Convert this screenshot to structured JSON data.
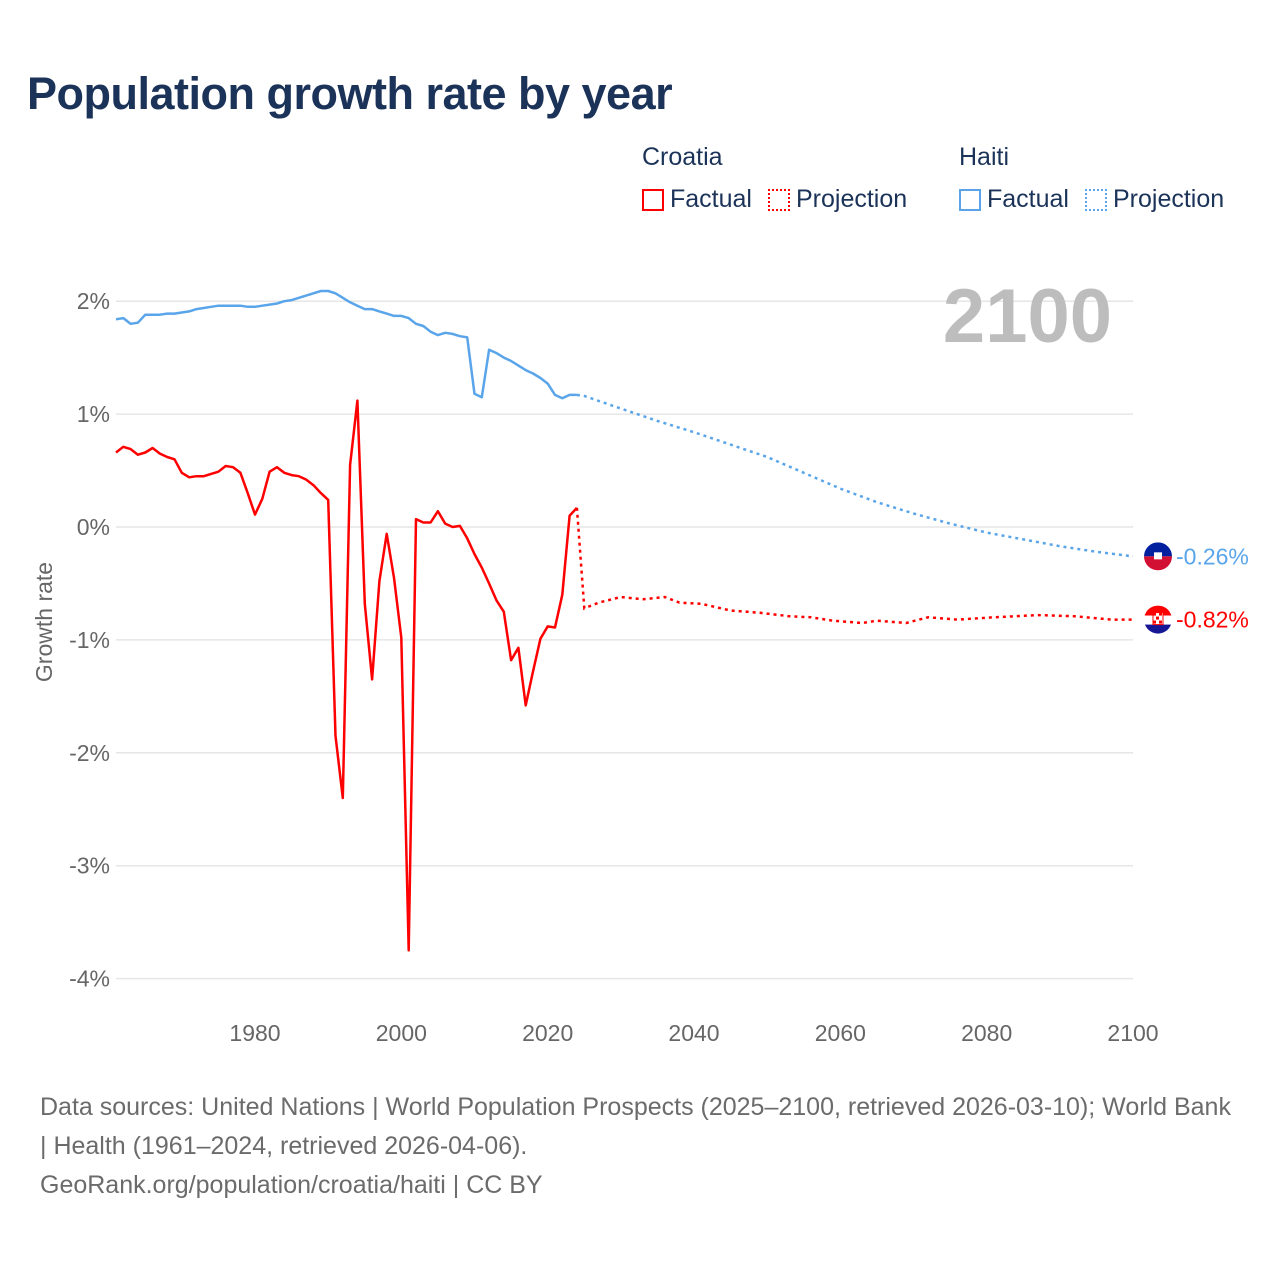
{
  "title": "Population growth rate by year",
  "legend": {
    "groups": [
      {
        "name": "Croatia",
        "factual": "Factual",
        "projection": "Projection",
        "color": "#ff0000"
      },
      {
        "name": "Haiti",
        "factual": "Factual",
        "projection": "Projection",
        "color": "#5aa5ea"
      }
    ]
  },
  "year_label": "2100",
  "footer": {
    "sources": "Data sources: United Nations | World Population Prospects (2025–2100, retrieved 2026-03-10); World Bank | Health (1961–2024, retrieved 2026-04-06).",
    "credit": "GeoRank.org/population/croatia/haiti | CC BY"
  },
  "chart_data": {
    "type": "line",
    "title": "Population growth rate by year",
    "xlabel": "",
    "ylabel": "Growth rate",
    "xlim": [
      1961,
      2100
    ],
    "ylim": [
      -4.2,
      2.2
    ],
    "grid": true,
    "x_ticks": [
      1980,
      2000,
      2020,
      2040,
      2060,
      2080,
      2100
    ],
    "x_tick_labels": [
      "1980",
      "2000",
      "2020",
      "2040",
      "2060",
      "2080",
      "2100"
    ],
    "y_ticks": [
      2,
      1,
      0,
      -1,
      -2,
      -3,
      -4
    ],
    "y_tick_labels": [
      "2%",
      "1%",
      "0%",
      "-1%",
      "-2%",
      "-3%",
      "-4%"
    ],
    "legend_position": "top-right",
    "series": [
      {
        "name": "Croatia",
        "color": "#ff0000",
        "end_label": "-0.82%",
        "factual": {
          "x": [
            1961,
            1962,
            1963,
            1964,
            1965,
            1966,
            1967,
            1968,
            1969,
            1970,
            1971,
            1972,
            1973,
            1974,
            1975,
            1976,
            1977,
            1978,
            1979,
            1980,
            1981,
            1982,
            1983,
            1984,
            1985,
            1986,
            1987,
            1988,
            1989,
            1990,
            1991,
            1992,
            1993,
            1994,
            1995,
            1996,
            1997,
            1998,
            1999,
            2000,
            2001,
            2002,
            2003,
            2004,
            2005,
            2006,
            2007,
            2008,
            2009,
            2010,
            2011,
            2012,
            2013,
            2014,
            2015,
            2016,
            2017,
            2018,
            2019,
            2020,
            2021,
            2022,
            2023,
            2024
          ],
          "y": [
            0.66,
            0.71,
            0.69,
            0.64,
            0.66,
            0.7,
            0.65,
            0.62,
            0.6,
            0.48,
            0.44,
            0.45,
            0.45,
            0.47,
            0.49,
            0.54,
            0.53,
            0.48,
            0.3,
            0.11,
            0.25,
            0.49,
            0.53,
            0.48,
            0.46,
            0.45,
            0.42,
            0.37,
            0.3,
            0.24,
            -1.85,
            -2.4,
            0.55,
            1.12,
            -0.68,
            -1.35,
            -0.48,
            -0.06,
            -0.45,
            -0.98,
            -3.75,
            0.07,
            0.04,
            0.04,
            0.14,
            0.03,
            0.0,
            0.01,
            -0.1,
            -0.24,
            -0.36,
            -0.5,
            -0.65,
            -0.75,
            -1.18,
            -1.07,
            -1.58,
            -1.28,
            -0.99,
            -0.88,
            -0.89,
            -0.6,
            0.1,
            0.17
          ]
        },
        "projection": {
          "x": [
            2024,
            2025,
            2027,
            2030,
            2033,
            2036,
            2038,
            2041,
            2045,
            2049,
            2053,
            2056,
            2059,
            2063,
            2065,
            2069,
            2072,
            2076,
            2081,
            2087,
            2092,
            2097,
            2100
          ],
          "y": [
            0.17,
            -0.72,
            -0.67,
            -0.62,
            -0.64,
            -0.62,
            -0.67,
            -0.68,
            -0.74,
            -0.76,
            -0.79,
            -0.8,
            -0.83,
            -0.85,
            -0.83,
            -0.85,
            -0.8,
            -0.82,
            -0.8,
            -0.78,
            -0.79,
            -0.82,
            -0.82
          ]
        }
      },
      {
        "name": "Haiti",
        "color": "#5aa5ea",
        "end_label": "-0.26%",
        "factual": {
          "x": [
            1961,
            1962,
            1963,
            1964,
            1965,
            1966,
            1967,
            1968,
            1969,
            1970,
            1971,
            1972,
            1973,
            1974,
            1975,
            1976,
            1977,
            1978,
            1979,
            1980,
            1981,
            1982,
            1983,
            1984,
            1985,
            1986,
            1987,
            1988,
            1989,
            1990,
            1991,
            1992,
            1993,
            1994,
            1995,
            1996,
            1997,
            1998,
            1999,
            2000,
            2001,
            2002,
            2003,
            2004,
            2005,
            2006,
            2007,
            2008,
            2009,
            2010,
            2011,
            2012,
            2013,
            2014,
            2015,
            2016,
            2017,
            2018,
            2019,
            2020,
            2021,
            2022,
            2023,
            2024
          ],
          "y": [
            1.84,
            1.85,
            1.8,
            1.81,
            1.88,
            1.88,
            1.88,
            1.89,
            1.89,
            1.9,
            1.91,
            1.93,
            1.94,
            1.95,
            1.96,
            1.96,
            1.96,
            1.96,
            1.95,
            1.95,
            1.96,
            1.97,
            1.98,
            2.0,
            2.01,
            2.03,
            2.05,
            2.07,
            2.09,
            2.09,
            2.07,
            2.03,
            1.99,
            1.96,
            1.93,
            1.93,
            1.91,
            1.89,
            1.87,
            1.87,
            1.85,
            1.8,
            1.78,
            1.73,
            1.7,
            1.72,
            1.71,
            1.69,
            1.68,
            1.18,
            1.15,
            1.57,
            1.54,
            1.5,
            1.47,
            1.43,
            1.39,
            1.36,
            1.32,
            1.27,
            1.17,
            1.14,
            1.17,
            1.17
          ]
        },
        "projection": {
          "x": [
            2024,
            2025,
            2030,
            2035,
            2040,
            2045,
            2050,
            2055,
            2060,
            2065,
            2070,
            2075,
            2080,
            2085,
            2090,
            2095,
            2100
          ],
          "y": [
            1.17,
            1.16,
            1.05,
            0.94,
            0.84,
            0.73,
            0.62,
            0.48,
            0.34,
            0.22,
            0.12,
            0.03,
            -0.05,
            -0.11,
            -0.17,
            -0.22,
            -0.26
          ]
        }
      }
    ]
  }
}
